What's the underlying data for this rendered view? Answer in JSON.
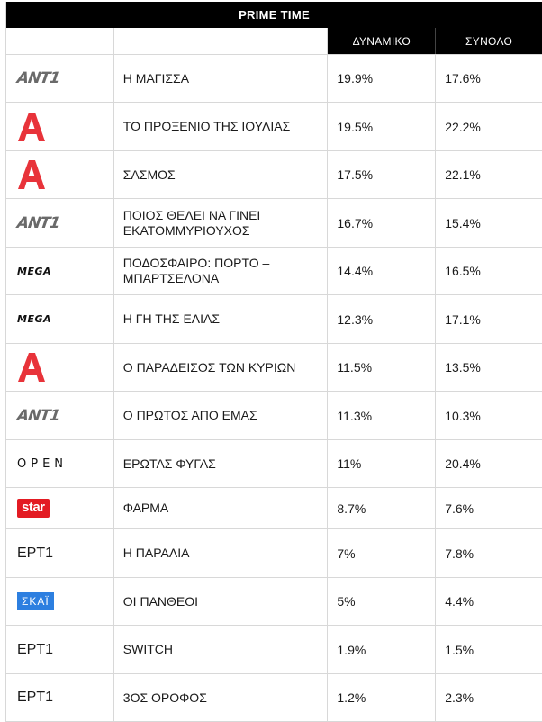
{
  "title": "PRIME TIME",
  "columns": {
    "dynamic": "ΔΥΝΑΜΙΚΟ",
    "total": "ΣΥΝΟΛΟ"
  },
  "colors": {
    "header_bg": "#000000",
    "alpha_red": "#e8333a",
    "star_red": "#e31b23",
    "ert_blue": "#1a3a9c",
    "skai_blue": "#2d7fe0"
  },
  "logos": {
    "ant1": {
      "name": "ant1-logo",
      "text": "ANT1"
    },
    "alpha": {
      "name": "alpha-logo",
      "text": ""
    },
    "mega": {
      "name": "mega-logo",
      "text": "MEGA"
    },
    "open": {
      "name": "open-logo",
      "text": "OPEN"
    },
    "star": {
      "name": "star-logo",
      "text": "star"
    },
    "ert1": {
      "name": "ert1-logo",
      "text": "ΕΡΤ",
      "num": "1"
    },
    "skai": {
      "name": "skai-logo",
      "text": "ΣΚΑΪ"
    }
  },
  "rows": [
    {
      "channel": "ant1",
      "show": "Η ΜΑΓΙΣΣΑ",
      "dynamic": "19.9%",
      "total": "17.6%"
    },
    {
      "channel": "alpha",
      "show": "ΤΟ ΠΡΟΞΕΝΙΟ ΤΗΣ ΙΟΥΛΙΑΣ",
      "dynamic": "19.5%",
      "total": "22.2%"
    },
    {
      "channel": "alpha",
      "show": "ΣΑΣΜΟΣ",
      "dynamic": "17.5%",
      "total": "22.1%"
    },
    {
      "channel": "ant1",
      "show": "ΠΟΙΟΣ ΘΕΛΕΙ ΝΑ ΓΙΝΕΙ ΕΚΑΤΟΜΜΥΡΙΟΥΧΟΣ",
      "dynamic": "16.7%",
      "total": "15.4%"
    },
    {
      "channel": "mega",
      "show": "ΠΟΔΟΣΦΑΙΡΟ: ΠΟΡΤΟ – ΜΠΑΡΤΣΕΛΟΝΑ",
      "dynamic": "14.4%",
      "total": "16.5%"
    },
    {
      "channel": "mega",
      "show": "Η ΓΗ ΤΗΣ ΕΛΙΑΣ",
      "dynamic": "12.3%",
      "total": "17.1%"
    },
    {
      "channel": "alpha",
      "show": "Ο ΠΑΡΑΔΕΙΣΟΣ ΤΩΝ ΚΥΡΙΩΝ",
      "dynamic": "11.5%",
      "total": "13.5%"
    },
    {
      "channel": "ant1",
      "show": "Ο ΠΡΩΤΟΣ ΑΠΟ ΕΜΑΣ",
      "dynamic": "11.3%",
      "total": "10.3%"
    },
    {
      "channel": "open",
      "show": "ΕΡΩΤΑΣ ΦΥΓΑΣ",
      "dynamic": "11%",
      "total": "20.4%"
    },
    {
      "channel": "star",
      "show": "ΦΑΡΜΑ",
      "dynamic": "8.7%",
      "total": "7.6%"
    },
    {
      "channel": "ert1",
      "show": "Η ΠΑΡΑΛΙΑ",
      "dynamic": "7%",
      "total": "7.8%"
    },
    {
      "channel": "skai",
      "show": "ΟΙ ΠΑΝΘΕΟΙ",
      "dynamic": "5%",
      "total": "4.4%"
    },
    {
      "channel": "ert1",
      "show": "SWITCH",
      "dynamic": "1.9%",
      "total": "1.5%"
    },
    {
      "channel": "ert1",
      "show": "3ΟΣ ΟΡΟΦΟΣ",
      "dynamic": "1.2%",
      "total": "2.3%"
    }
  ]
}
